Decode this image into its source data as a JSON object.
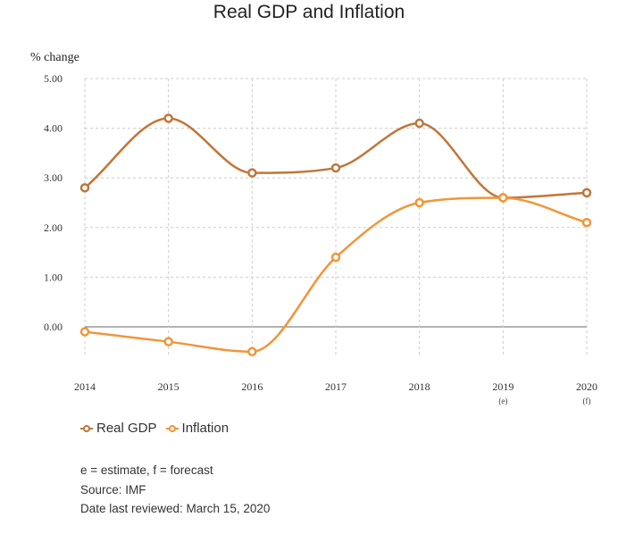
{
  "chart_data": {
    "type": "line",
    "title": "Real GDP and Inflation",
    "ylabel": "% change",
    "xlabel": "",
    "categories": [
      "2014",
      "2015",
      "2016",
      "2017",
      "2018",
      "2019",
      "2020"
    ],
    "category_notes": [
      "",
      "",
      "",
      "",
      "",
      "(e)",
      "(f)"
    ],
    "yticks": [
      "5.00",
      "4.00",
      "3.00",
      "2.00",
      "1.00",
      "0.00"
    ],
    "ylim": [
      -0.55,
      5.0
    ],
    "grid": true,
    "legend_position": "bottom-left",
    "series": [
      {
        "name": "Real GDP",
        "color": "#c0763a",
        "values": [
          2.8,
          4.2,
          3.1,
          3.2,
          4.1,
          2.6,
          2.7
        ]
      },
      {
        "name": "Inflation",
        "color": "#f0963a",
        "values": [
          -0.1,
          -0.3,
          -0.5,
          1.4,
          2.5,
          2.6,
          2.1
        ]
      }
    ]
  },
  "notes": {
    "line1": "e = estimate, f = forecast",
    "line2": "Source: IMF",
    "line3": "Date last reviewed: March 15, 2020"
  }
}
